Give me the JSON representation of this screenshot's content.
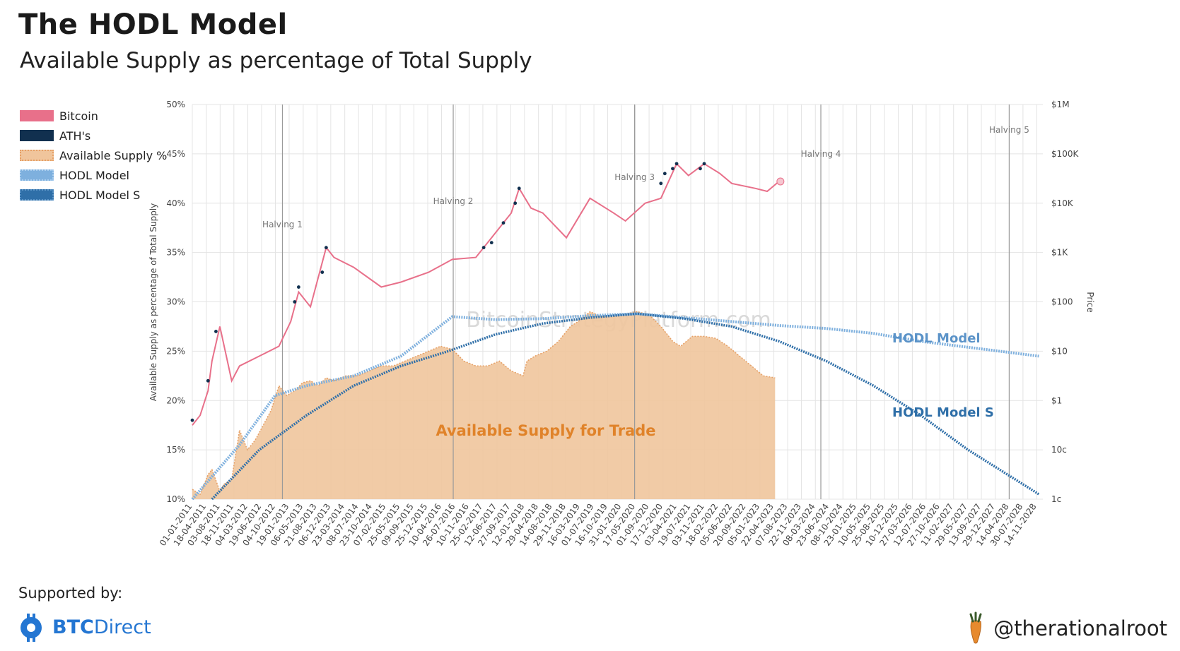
{
  "title": "The HODL Model",
  "subtitle": "Available Supply as percentage of Total Supply",
  "legend": [
    {
      "label": "Bitcoin",
      "key": "btc"
    },
    {
      "label": "ATH's",
      "key": "ath"
    },
    {
      "label": "Available Supply %",
      "key": "avail"
    },
    {
      "label": "HODL Model",
      "key": "hodl"
    },
    {
      "label": "HODL Model S",
      "key": "hodls"
    }
  ],
  "footer": {
    "supported_by": "Supported by:",
    "brand_bold": "BTC",
    "brand_rest": "Direct",
    "handle": "@therationalroot"
  },
  "colors": {
    "bitcoin": "#e8708a",
    "ath": "#11304f",
    "available_supply": "#f0c59c",
    "available_supply_stroke": "#e6a066",
    "hodl_model": "#7eb0de",
    "hodl_model_s": "#2f6fa8",
    "annotation_text": "#e0832a",
    "grid": "#e4e4e4",
    "halving_line": "#9a9a9a"
  },
  "chart_data": {
    "type": "line",
    "watermark": "BitcoinStrategyPlatform.com",
    "area_label": "Available Supply for Trade",
    "series_labels": {
      "hodl": "HODL Model",
      "hodls": "HODL Model S"
    },
    "ylabel": "Available Supply as percentage of Total Supply",
    "y2label": "Price",
    "ylim": [
      10,
      50
    ],
    "y_ticks": [
      "10%",
      "15%",
      "20%",
      "25%",
      "30%",
      "35%",
      "40%",
      "45%",
      "50%"
    ],
    "y2_ticks": [
      "1c",
      "10c",
      "$1",
      "$10",
      "$100",
      "$1K",
      "$10K",
      "$100K",
      "$1M"
    ],
    "y2_scale": "log",
    "xlim": [
      "01-01-2011",
      "31-12-2028"
    ],
    "x_ticks": [
      "01-01-2011",
      "18-04-2011",
      "03-08-2011",
      "18-11-2011",
      "04-03-2012",
      "19-06-2012",
      "04-10-2012",
      "19-01-2013",
      "06-05-2013",
      "21-08-2013",
      "06-12-2013",
      "23-03-2014",
      "08-07-2014",
      "23-10-2014",
      "07-02-2015",
      "25-05-2015",
      "09-09-2015",
      "25-12-2015",
      "10-04-2016",
      "26-07-2016",
      "10-11-2016",
      "25-02-2017",
      "12-06-2017",
      "27-09-2017",
      "12-01-2018",
      "29-04-2018",
      "14-08-2018",
      "29-11-2018",
      "16-03-2019",
      "01-07-2019",
      "16-10-2019",
      "31-01-2020",
      "17-05-2020",
      "01-09-2020",
      "17-12-2020",
      "03-04-2021",
      "19-07-2021",
      "03-11-2021",
      "18-02-2022",
      "05-06-2022",
      "20-09-2022",
      "05-01-2023",
      "22-04-2023",
      "07-08-2023",
      "22-11-2023",
      "08-03-2024",
      "23-06-2024",
      "08-10-2024",
      "23-01-2025",
      "10-05-2025",
      "25-08-2025",
      "10-12-2025",
      "27-03-2026",
      "12-07-2026",
      "27-10-2026",
      "11-02-2027",
      "29-05-2027",
      "13-09-2027",
      "29-12-2027",
      "14-04-2028",
      "30-07-2028",
      "14-11-2028"
    ],
    "halvings": [
      {
        "label": "Halving 1",
        "date": "2012-11-28"
      },
      {
        "label": "Halving 2",
        "date": "2016-07-09"
      },
      {
        "label": "Halving 3",
        "date": "2020-05-11"
      },
      {
        "label": "Halving 4",
        "date": "2024-04-20"
      },
      {
        "label": "Halving 5",
        "date": "2028-04-15"
      }
    ],
    "series": [
      {
        "name": "Available Supply %",
        "x": [
          "2011-01",
          "2011-03",
          "2011-05",
          "2011-06",
          "2011-08",
          "2011-09",
          "2011-11",
          "2012-01",
          "2012-03",
          "2012-05",
          "2012-07",
          "2012-09",
          "2012-11",
          "2013-01",
          "2013-03",
          "2013-05",
          "2013-07",
          "2013-09",
          "2013-11",
          "2014-01",
          "2014-04",
          "2014-07",
          "2014-10",
          "2015-01",
          "2015-04",
          "2015-07",
          "2015-10",
          "2016-01",
          "2016-04",
          "2016-07",
          "2016-10",
          "2017-01",
          "2017-04",
          "2017-07",
          "2017-10",
          "2018-01",
          "2018-02",
          "2018-04",
          "2018-07",
          "2018-10",
          "2019-01",
          "2019-03",
          "2019-06",
          "2019-09",
          "2019-12",
          "2020-03",
          "2020-06",
          "2020-09",
          "2020-12",
          "2021-03",
          "2021-05",
          "2021-08",
          "2021-11",
          "2022-02",
          "2022-05",
          "2022-08",
          "2022-11",
          "2023-02",
          "2023-05"
        ],
        "values": [
          11,
          10.5,
          12.5,
          13,
          10.8,
          11.5,
          12,
          17,
          15,
          16,
          17.5,
          19,
          21.5,
          20.5,
          21,
          21.8,
          22,
          21.5,
          22.3,
          22,
          22.5,
          22.5,
          23,
          23.5,
          23.5,
          24,
          24.5,
          25,
          25.5,
          25.2,
          24,
          23.5,
          23.5,
          24,
          23,
          22.5,
          24,
          24.5,
          25,
          26,
          27.5,
          28,
          29,
          28.5,
          28.5,
          28.8,
          29,
          28.7,
          27.5,
          26,
          25.5,
          26.5,
          26.5,
          26.3,
          25.5,
          24.5,
          23.5,
          22.5,
          22.3
        ]
      },
      {
        "name": "Bitcoin",
        "x": [
          "2011-01",
          "2011-03",
          "2011-05",
          "2011-06",
          "2011-08",
          "2011-11",
          "2012-01",
          "2012-06",
          "2012-11",
          "2013-02",
          "2013-04",
          "2013-07",
          "2013-11",
          "2014-01",
          "2014-06",
          "2015-01",
          "2015-06",
          "2016-01",
          "2016-07",
          "2017-01",
          "2017-06",
          "2017-10",
          "2017-12",
          "2018-03",
          "2018-06",
          "2018-12",
          "2019-06",
          "2019-12",
          "2020-03",
          "2020-08",
          "2020-12",
          "2021-04",
          "2021-07",
          "2021-11",
          "2022-03",
          "2022-06",
          "2022-12",
          "2023-03",
          "2023-06"
        ],
        "values": [
          17.5,
          18.5,
          21,
          24,
          27.5,
          22,
          23.5,
          24.5,
          25.5,
          28,
          31,
          29.5,
          35.5,
          34.5,
          33.5,
          31.5,
          32,
          33,
          34.3,
          34.5,
          37,
          39,
          41.5,
          39.5,
          39,
          36.5,
          40.5,
          39,
          38.2,
          40,
          40.5,
          44,
          42.8,
          44,
          43,
          42,
          41.5,
          41.2,
          42.2
        ]
      },
      {
        "name": "HODL Model",
        "x": [
          "2011-01",
          "2012-01",
          "2012-10",
          "2013-06",
          "2014-06",
          "2015-06",
          "2016-07",
          "2017-06",
          "2018-06",
          "2019-06",
          "2020-06",
          "2021-06",
          "2022-06",
          "2023-06",
          "2024-06",
          "2025-06",
          "2026-06",
          "2027-06",
          "2028-06",
          "2028-12"
        ],
        "values": [
          10,
          15.5,
          20.5,
          21.5,
          22.5,
          24.5,
          28.5,
          28.2,
          28.3,
          28.6,
          28.8,
          28.4,
          28,
          27.6,
          27.3,
          26.8,
          26,
          25.4,
          24.8,
          24.5
        ]
      },
      {
        "name": "HODL Model S",
        "x": [
          "2011-06",
          "2012-06",
          "2013-06",
          "2014-06",
          "2015-06",
          "2016-06",
          "2017-06",
          "2018-06",
          "2019-06",
          "2020-06",
          "2021-06",
          "2022-06",
          "2023-06",
          "2024-06",
          "2025-06",
          "2026-06",
          "2027-06",
          "2028-06",
          "2028-12"
        ],
        "values": [
          10,
          15,
          18.5,
          21.5,
          23.5,
          25,
          26.7,
          27.8,
          28.4,
          28.8,
          28.3,
          27.5,
          26,
          24,
          21.5,
          18.5,
          15,
          12,
          10.5
        ]
      },
      {
        "name": "ATH's",
        "x": [
          "2011-01",
          "2011-05",
          "2011-07",
          "2013-03",
          "2013-04",
          "2013-10",
          "2013-11",
          "2017-03",
          "2017-05",
          "2017-08",
          "2017-11",
          "2017-12",
          "2020-12",
          "2021-01",
          "2021-03",
          "2021-04",
          "2021-10",
          "2021-11"
        ],
        "values": [
          18,
          22,
          27,
          30,
          31.5,
          33,
          35.5,
          35.5,
          36,
          38,
          40,
          41.5,
          42,
          43,
          43.5,
          44,
          43.5,
          44
        ]
      }
    ]
  }
}
